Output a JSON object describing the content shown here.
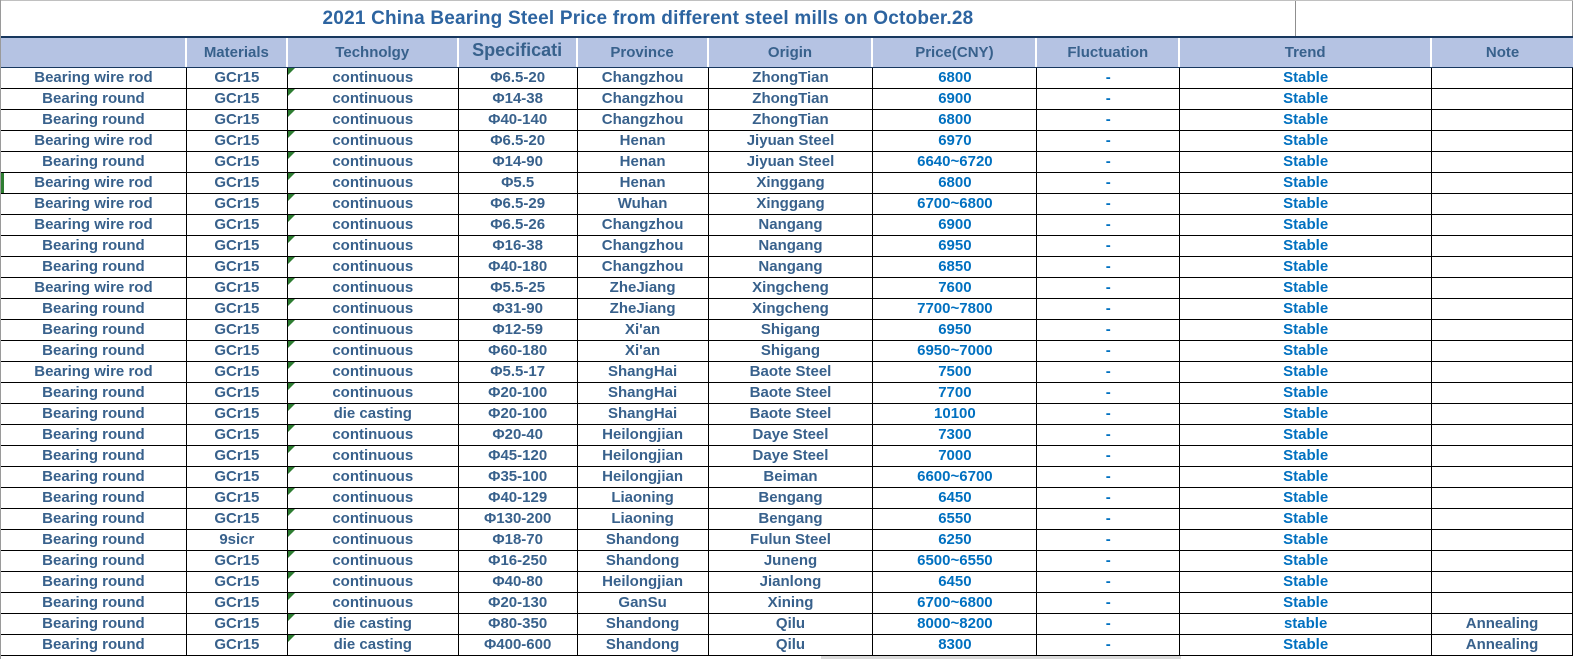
{
  "title": "2021 China Bearing Steel Price from different steel mills on  October.28",
  "table": {
    "columns": [
      "",
      "Materials",
      "Technolgy",
      "Specificati",
      "Province",
      "Origin",
      "Price(CNY)",
      "Fluctuation",
      "Trend",
      "Note"
    ],
    "rows": [
      [
        "Bearing wire rod",
        "GCr15",
        "continuous",
        "Φ6.5-20",
        "Changzhou",
        "ZhongTian",
        "6800",
        "-",
        "Stable",
        ""
      ],
      [
        "Bearing round",
        "GCr15",
        "continuous",
        "Φ14-38",
        "Changzhou",
        "ZhongTian",
        "6900",
        "-",
        "Stable",
        ""
      ],
      [
        "Bearing round",
        "GCr15",
        "continuous",
        "Φ40-140",
        "Changzhou",
        "ZhongTian",
        "6800",
        "-",
        "Stable",
        ""
      ],
      [
        "Bearing wire rod",
        "GCr15",
        "continuous",
        "Φ6.5-20",
        "Henan",
        "Jiyuan Steel",
        "6970",
        "-",
        "Stable",
        ""
      ],
      [
        "Bearing round",
        "GCr15",
        "continuous",
        "Φ14-90",
        "Henan",
        "Jiyuan Steel",
        "6640~6720",
        "-",
        "Stable",
        ""
      ],
      [
        "Bearing wire rod",
        "GCr15",
        "continuous",
        "Φ5.5",
        "Henan",
        "Xinggang",
        "6800",
        "-",
        "Stable",
        ""
      ],
      [
        "Bearing wire rod",
        "GCr15",
        "continuous",
        "Φ6.5-29",
        "Wuhan",
        "Xinggang",
        "6700~6800",
        "-",
        "Stable",
        ""
      ],
      [
        "Bearing wire rod",
        "GCr15",
        "continuous",
        "Φ6.5-26",
        "Changzhou",
        "Nangang",
        "6900",
        "-",
        "Stable",
        ""
      ],
      [
        "Bearing round",
        "GCr15",
        "continuous",
        "Φ16-38",
        "Changzhou",
        "Nangang",
        "6950",
        "-",
        "Stable",
        ""
      ],
      [
        "Bearing round",
        "GCr15",
        "continuous",
        "Φ40-180",
        "Changzhou",
        "Nangang",
        "6850",
        "-",
        "Stable",
        ""
      ],
      [
        "Bearing wire rod",
        "GCr15",
        "continuous",
        "Φ5.5-25",
        "ZheJiang",
        "Xingcheng",
        "7600",
        "-",
        "Stable",
        ""
      ],
      [
        "Bearing round",
        "GCr15",
        "continuous",
        "Φ31-90",
        "ZheJiang",
        "Xingcheng",
        "7700~7800",
        "-",
        "Stable",
        ""
      ],
      [
        "Bearing round",
        "GCr15",
        "continuous",
        "Φ12-59",
        "Xi'an",
        "Shigang",
        "6950",
        "-",
        "Stable",
        ""
      ],
      [
        "Bearing round",
        "GCr15",
        "continuous",
        "Φ60-180",
        "Xi'an",
        "Shigang",
        "6950~7000",
        "-",
        "Stable",
        ""
      ],
      [
        "Bearing wire rod",
        "GCr15",
        "continuous",
        "Φ5.5-17",
        "ShangHai",
        "Baote Steel",
        "7500",
        "-",
        "Stable",
        ""
      ],
      [
        "Bearing round",
        "GCr15",
        "continuous",
        "Φ20-100",
        "ShangHai",
        "Baote Steel",
        "7700",
        "-",
        "Stable",
        ""
      ],
      [
        "Bearing round",
        "GCr15",
        "die casting",
        "Φ20-100",
        "ShangHai",
        "Baote Steel",
        "10100",
        "-",
        "Stable",
        ""
      ],
      [
        "Bearing round",
        "GCr15",
        "continuous",
        "Φ20-40",
        "Heilongjian",
        "Daye  Steel",
        "7300",
        "-",
        "Stable",
        ""
      ],
      [
        "Bearing round",
        "GCr15",
        "continuous",
        "Φ45-120",
        "Heilongjian",
        "Daye  Steel",
        "7000",
        "-",
        "Stable",
        ""
      ],
      [
        "Bearing round",
        "GCr15",
        "continuous",
        "Φ35-100",
        "Heilongjian",
        "Beiman",
        "6600~6700",
        "-",
        "Stable",
        ""
      ],
      [
        "Bearing round",
        "GCr15",
        "continuous",
        "Φ40-129",
        "Liaoning",
        "Bengang",
        "6450",
        "-",
        "Stable",
        ""
      ],
      [
        "Bearing round",
        "GCr15",
        "continuous",
        "Φ130-200",
        "Liaoning",
        "Bengang",
        "6550",
        "-",
        "Stable",
        ""
      ],
      [
        "Bearing round",
        "9sicr",
        "continuous",
        "Φ18-70",
        "Shandong",
        "Fulun Steel",
        "6250",
        "-",
        "Stable",
        ""
      ],
      [
        "Bearing round",
        "GCr15",
        "continuous",
        "Φ16-250",
        "Shandong",
        "Juneng",
        "6500~6550",
        "-",
        "Stable",
        ""
      ],
      [
        "Bearing round",
        "GCr15",
        "continuous",
        "Φ40-80",
        "Heilongjian",
        "Jianlong",
        "6450",
        "-",
        "Stable",
        ""
      ],
      [
        "Bearing round",
        "GCr15",
        "continuous",
        "Φ20-130",
        "GanSu",
        "Xining",
        "6700~6800",
        "-",
        "Stable",
        ""
      ],
      [
        "Bearing round",
        "GCr15",
        "die casting",
        "Φ80-350",
        "Shandong",
        "Qilu",
        "8000~8200",
        "-",
        "stable",
        "Annealing"
      ],
      [
        "Bearing round",
        "GCr15",
        "die casting",
        "Φ400-600",
        "Shandong",
        "Qilu",
        "8300",
        "-",
        "Stable",
        "Annealing"
      ]
    ]
  },
  "indicators": {
    "technology_error_triangle": "error-indicator",
    "row6_left_marker_row": 5
  },
  "colors": {
    "header_bg": "#b5c3e3",
    "header_text": "#38618c",
    "data_text": "#38618c",
    "price_text": "#0070c0",
    "title_text": "#2d64a0",
    "grid_border": "#000000",
    "header_divider": "#17375e",
    "error_green": "#2e7d32",
    "partial_row_gray": "#d9d9d9"
  }
}
